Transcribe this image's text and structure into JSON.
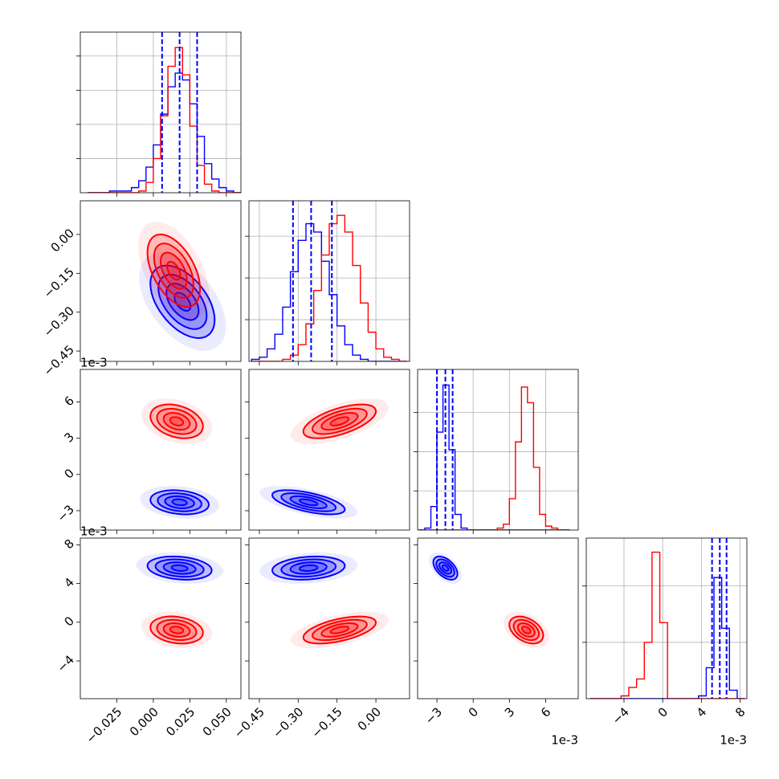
{
  "chart_data": {
    "type": "corner",
    "sigma_levels": [
      0.5,
      1,
      1.5,
      2
    ],
    "quantile_color": "#0000ff",
    "grid": true,
    "axes": [
      {
        "lim": [
          -0.05,
          0.06
        ],
        "ticks": [
          {
            "value": -0.025,
            "label": "−0.025"
          },
          {
            "value": 0,
            "label": "0.000"
          },
          {
            "value": 0.025,
            "label": "0.025"
          },
          {
            "value": 0.05,
            "label": "0.050"
          }
        ]
      },
      {
        "lim": [
          -0.49,
          0.13
        ],
        "ticks": [
          {
            "value": -0.45,
            "label": "−0.45"
          },
          {
            "value": -0.3,
            "label": "−0.30"
          },
          {
            "value": -0.15,
            "label": "−0.15"
          },
          {
            "value": 0,
            "label": "0.00"
          }
        ]
      },
      {
        "lim": [
          -4.6,
          8.7
        ],
        "ticks": [
          {
            "value": -3,
            "label": "−3"
          },
          0,
          3,
          6
        ],
        "offset_label": "1e-3"
      },
      {
        "lim": [
          -7.9,
          8.7
        ],
        "ticks": [
          {
            "value": -4,
            "label": "−4"
          },
          0,
          4,
          8
        ],
        "offset_label": "1e-3"
      }
    ],
    "histograms": [
      {
        "ylim": [
          0,
          94
        ],
        "yticks": [
          20,
          40,
          60,
          80
        ],
        "bins": [
          -0.045,
          -0.04,
          -0.035,
          -0.03,
          -0.025,
          -0.02,
          -0.015,
          -0.01,
          -0.005,
          0,
          0.005,
          0.01,
          0.015,
          0.02,
          0.025,
          0.03,
          0.035,
          0.04,
          0.045,
          0.05,
          0.055,
          0.06
        ],
        "series": [
          {
            "color": "#0000ff",
            "values": [
              0,
              0,
              0,
              1,
              1,
              1,
              3,
              7,
              15,
              28,
              46,
              62,
              70,
              66,
              52,
              33,
              17,
              8,
              3,
              1,
              0
            ]
          },
          {
            "color": "#ff0000",
            "values": [
              0,
              0,
              0,
              0,
              0,
              0,
              0,
              1,
              6,
              20,
              45,
              74,
              85,
              69,
              39,
              16,
              5,
              1,
              0,
              0,
              0
            ]
          }
        ],
        "quantiles": [
          0.006,
          0.018,
          0.03
        ]
      },
      {
        "ylim": [
          0,
          77
        ],
        "yticks": [
          20,
          40,
          60
        ],
        "bins": [
          -0.48,
          -0.45,
          -0.42,
          -0.39,
          -0.36,
          -0.33,
          -0.3,
          -0.27,
          -0.24,
          -0.21,
          -0.18,
          -0.15,
          -0.12,
          -0.09,
          -0.06,
          -0.03,
          0,
          0.03,
          0.06,
          0.09,
          0.12
        ],
        "series": [
          {
            "color": "#0000ff",
            "values": [
              1,
              2,
              6,
              13,
              26,
              43,
              58,
              66,
              62,
              48,
              32,
              17,
              8,
              3,
              1,
              0,
              0,
              0,
              0,
              0
            ]
          },
          {
            "color": "#ff0000",
            "values": [
              0,
              0,
              0,
              0,
              1,
              3,
              8,
              18,
              34,
              51,
              66,
              70,
              62,
              46,
              28,
              14,
              6,
              2,
              1,
              0
            ]
          }
        ],
        "quantiles": [
          -0.32,
          -0.25,
          -0.17
        ]
      },
      {
        "ylim": [
          0,
          82
        ],
        "yticks": [
          20,
          40,
          60
        ],
        "bins": [
          -4.5,
          -4,
          -3.5,
          -3,
          -2.5,
          -2,
          -1.5,
          -1,
          -0.5,
          0,
          0.5,
          1,
          1.5,
          2,
          2.5,
          3,
          3.5,
          4,
          4.5,
          5,
          5.5,
          6,
          6.5,
          7,
          7.5,
          8
        ],
        "series": [
          {
            "color": "#0000ff",
            "values": [
              0,
              1,
              12,
              50,
              74,
              41,
              8,
              1,
              0,
              0,
              0,
              0,
              0,
              0,
              0,
              0,
              0,
              0,
              0,
              0,
              0,
              0,
              0,
              0,
              0
            ]
          },
          {
            "color": "#ff0000",
            "values": [
              0,
              0,
              0,
              0,
              0,
              0,
              0,
              0,
              0,
              0,
              0,
              0,
              0,
              1,
              3,
              16,
              45,
              73,
              65,
              32,
              8,
              2,
              1,
              0,
              0
            ]
          }
        ],
        "quantiles": [
          -3.0,
          -2.3,
          -1.7
        ]
      },
      {
        "ylim": [
          0,
          57
        ],
        "yticks": [
          20,
          40
        ],
        "bins": [
          -7.5,
          -6.7,
          -5.9,
          -5.1,
          -4.3,
          -3.5,
          -2.7,
          -1.9,
          -1.1,
          -0.3,
          0.5,
          1.3,
          2.1,
          2.9,
          3.7,
          4.5,
          5.3,
          6.1,
          6.9,
          7.7,
          8.5
        ],
        "series": [
          {
            "color": "#0000ff",
            "values": [
              0,
              0,
              0,
              0,
              0,
              0,
              0,
              0,
              0,
              0,
              0,
              0,
              0,
              0,
              1,
              11,
              43,
              25,
              3,
              0
            ]
          },
          {
            "color": "#ff0000",
            "values": [
              0,
              0,
              0,
              0,
              1,
              4,
              7,
              20,
              52,
              27,
              0,
              0,
              0,
              0,
              0,
              0,
              0,
              0,
              0,
              0
            ]
          }
        ],
        "quantiles": [
          5.1,
          5.9,
          6.6
        ]
      }
    ],
    "pairs": [
      {
        "series": [
          {
            "color": "#0000ff",
            "mean": [
              0.02,
              -0.26
            ],
            "std": [
              0.011,
              0.07
            ],
            "corr": -0.5
          },
          {
            "color": "#ff0000",
            "mean": [
              0.014,
              -0.14
            ],
            "std": [
              0.009,
              0.07
            ],
            "corr": -0.5
          }
        ]
      },
      {
        "series": [
          {
            "color": "#0000ff",
            "mean": [
              0.018,
              -2.3
            ],
            "std": [
              0.01,
              0.5
            ],
            "corr": -0.2
          },
          {
            "color": "#ff0000",
            "mean": [
              0.016,
              4.4
            ],
            "std": [
              0.009,
              0.7
            ],
            "corr": -0.3
          }
        ]
      },
      {
        "series": [
          {
            "color": "#0000ff",
            "mean": [
              -0.26,
              -2.3
            ],
            "std": [
              0.07,
              0.5
            ],
            "corr": -0.6
          },
          {
            "color": "#ff0000",
            "mean": [
              -0.14,
              4.4
            ],
            "std": [
              0.07,
              0.7
            ],
            "corr": 0.6
          }
        ]
      },
      {
        "series": [
          {
            "color": "#0000ff",
            "mean": [
              0.018,
              5.6
            ],
            "std": [
              0.011,
              0.6
            ],
            "corr": -0.2
          },
          {
            "color": "#ff0000",
            "mean": [
              0.016,
              -0.8
            ],
            "std": [
              0.009,
              0.7
            ],
            "corr": -0.2
          }
        ]
      },
      {
        "series": [
          {
            "color": "#0000ff",
            "mean": [
              -0.26,
              5.6
            ],
            "std": [
              0.07,
              0.6
            ],
            "corr": 0.2
          },
          {
            "color": "#ff0000",
            "mean": [
              -0.14,
              -0.8
            ],
            "std": [
              0.07,
              0.7
            ],
            "corr": 0.55
          }
        ]
      },
      {
        "series": [
          {
            "color": "#0000ff",
            "mean": [
              -2.3,
              5.6
            ],
            "std": [
              0.5,
              0.6
            ],
            "corr": -0.5
          },
          {
            "color": "#ff0000",
            "mean": [
              4.4,
              -0.8
            ],
            "std": [
              0.7,
              0.7
            ],
            "corr": -0.4
          }
        ]
      }
    ]
  }
}
